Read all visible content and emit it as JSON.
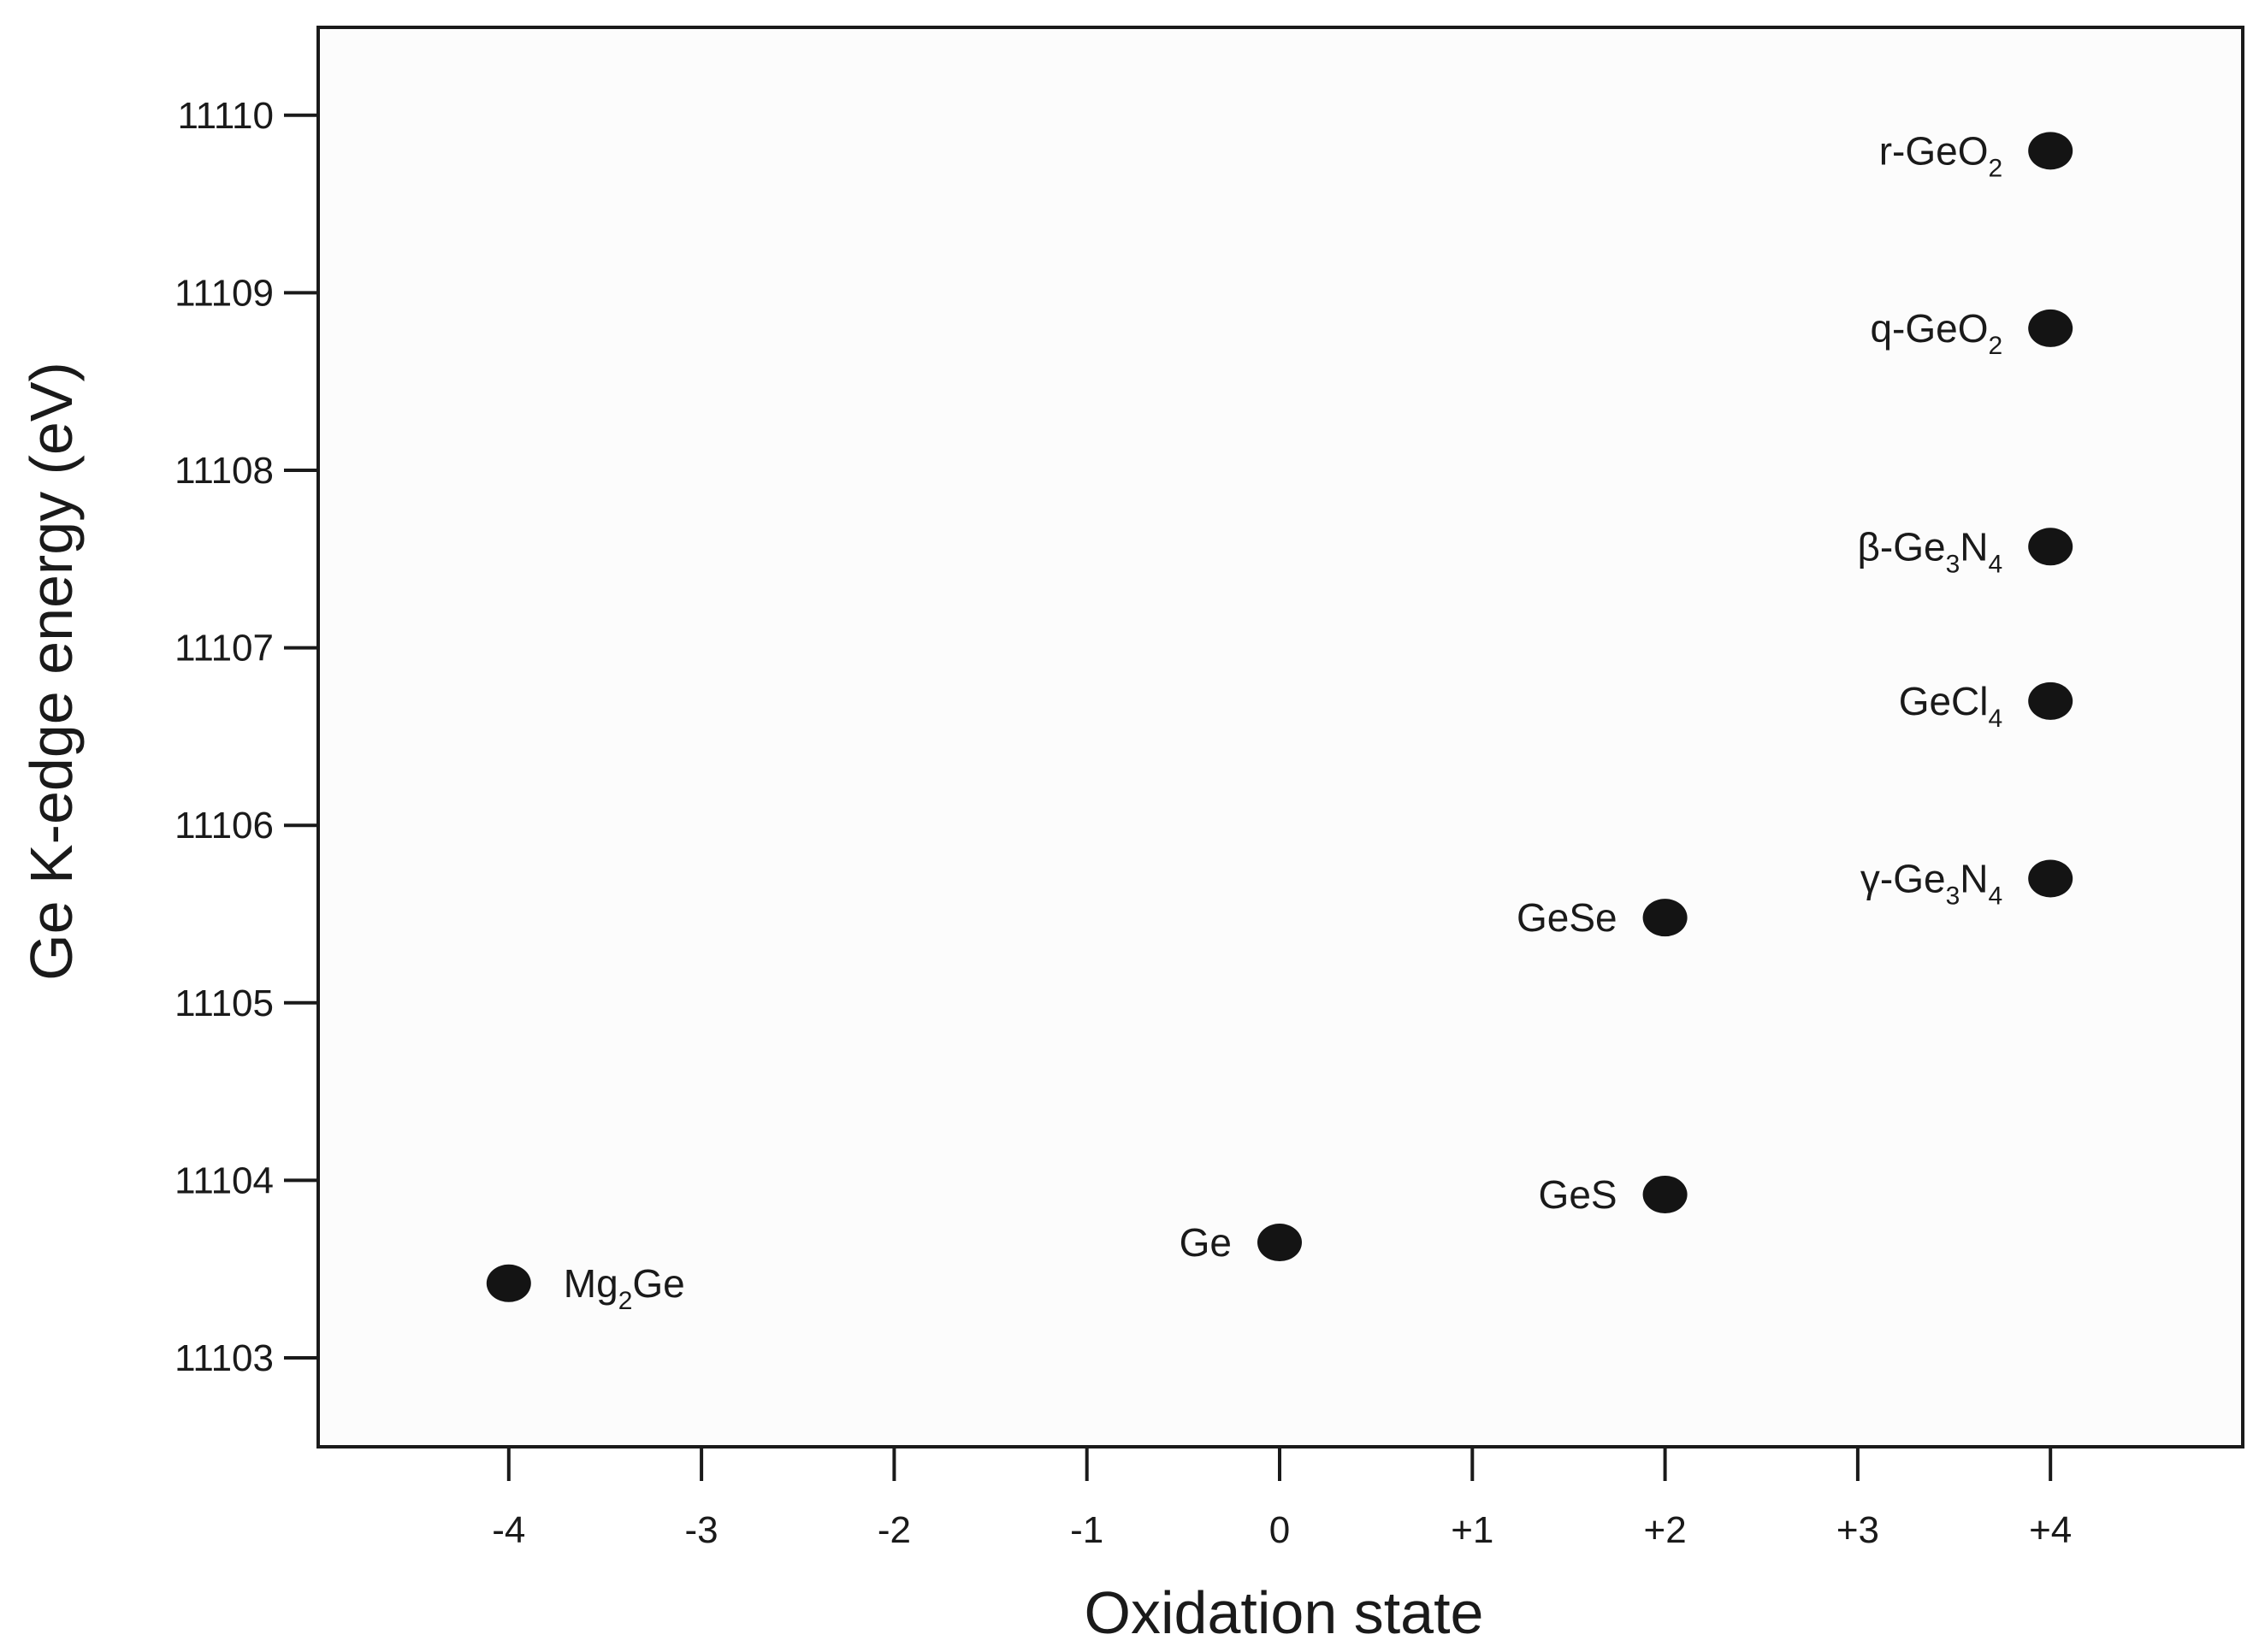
{
  "chart_data": {
    "type": "scatter",
    "title": "",
    "xlabel": "Oxidation state",
    "ylabel": "Ge K-edge energy (eV)",
    "xlim": [
      -5,
      5
    ],
    "ylim": [
      11102.5,
      11110.5
    ],
    "grid": false,
    "xticks": [
      {
        "value": -4,
        "label": "-4"
      },
      {
        "value": -3,
        "label": "-3"
      },
      {
        "value": -2,
        "label": "-2"
      },
      {
        "value": -1,
        "label": "-1"
      },
      {
        "value": 0,
        "label": "0"
      },
      {
        "value": 1,
        "label": "+1"
      },
      {
        "value": 2,
        "label": "+2"
      },
      {
        "value": 3,
        "label": "+3"
      },
      {
        "value": 4,
        "label": "+4"
      }
    ],
    "yticks": [
      {
        "value": 11103,
        "label": "11103"
      },
      {
        "value": 11104,
        "label": "11104"
      },
      {
        "value": 11105,
        "label": "11105"
      },
      {
        "value": 11106,
        "label": "11106"
      },
      {
        "value": 11107,
        "label": "11107"
      },
      {
        "value": 11108,
        "label": "11108"
      },
      {
        "value": 11109,
        "label": "11109"
      },
      {
        "value": 11110,
        "label": "11110"
      }
    ],
    "points": [
      {
        "name": "Mg2Ge",
        "label": [
          {
            "t": "Mg"
          },
          {
            "t": "2",
            "sub": true
          },
          {
            "t": "Ge"
          }
        ],
        "x": -4,
        "y": 11103.42,
        "label_side": "right"
      },
      {
        "name": "Ge",
        "label": [
          {
            "t": "Ge"
          }
        ],
        "x": 0,
        "y": 11103.65,
        "label_side": "left"
      },
      {
        "name": "GeS",
        "label": [
          {
            "t": "GeS"
          }
        ],
        "x": 2,
        "y": 11103.92,
        "label_side": "left"
      },
      {
        "name": "GeSe",
        "label": [
          {
            "t": "GeSe"
          }
        ],
        "x": 2,
        "y": 11105.48,
        "label_side": "left"
      },
      {
        "name": "gamma-Ge3N4",
        "label": [
          {
            "t": "γ-Ge"
          },
          {
            "t": "3",
            "sub": true
          },
          {
            "t": "N"
          },
          {
            "t": "4",
            "sub": true
          }
        ],
        "x": 4,
        "y": 11105.7,
        "label_side": "left"
      },
      {
        "name": "GeCl4",
        "label": [
          {
            "t": "GeCl"
          },
          {
            "t": "4",
            "sub": true
          }
        ],
        "x": 4,
        "y": 11106.7,
        "label_side": "left"
      },
      {
        "name": "beta-Ge3N4",
        "label": [
          {
            "t": "β-Ge"
          },
          {
            "t": "3",
            "sub": true
          },
          {
            "t": "N"
          },
          {
            "t": "4",
            "sub": true
          }
        ],
        "x": 4,
        "y": 11107.57,
        "label_side": "left"
      },
      {
        "name": "q-GeO2",
        "label": [
          {
            "t": "q-GeO"
          },
          {
            "t": "2",
            "sub": true
          }
        ],
        "x": 4,
        "y": 11108.8,
        "label_side": "left"
      },
      {
        "name": "r-GeO2",
        "label": [
          {
            "t": "r-GeO"
          },
          {
            "t": "2",
            "sub": true
          }
        ],
        "x": 4,
        "y": 11109.8,
        "label_side": "left"
      }
    ],
    "colors": {
      "marker": "#141414",
      "axis": "#1a1a1a",
      "plot_background": "#fcfcfc"
    }
  }
}
